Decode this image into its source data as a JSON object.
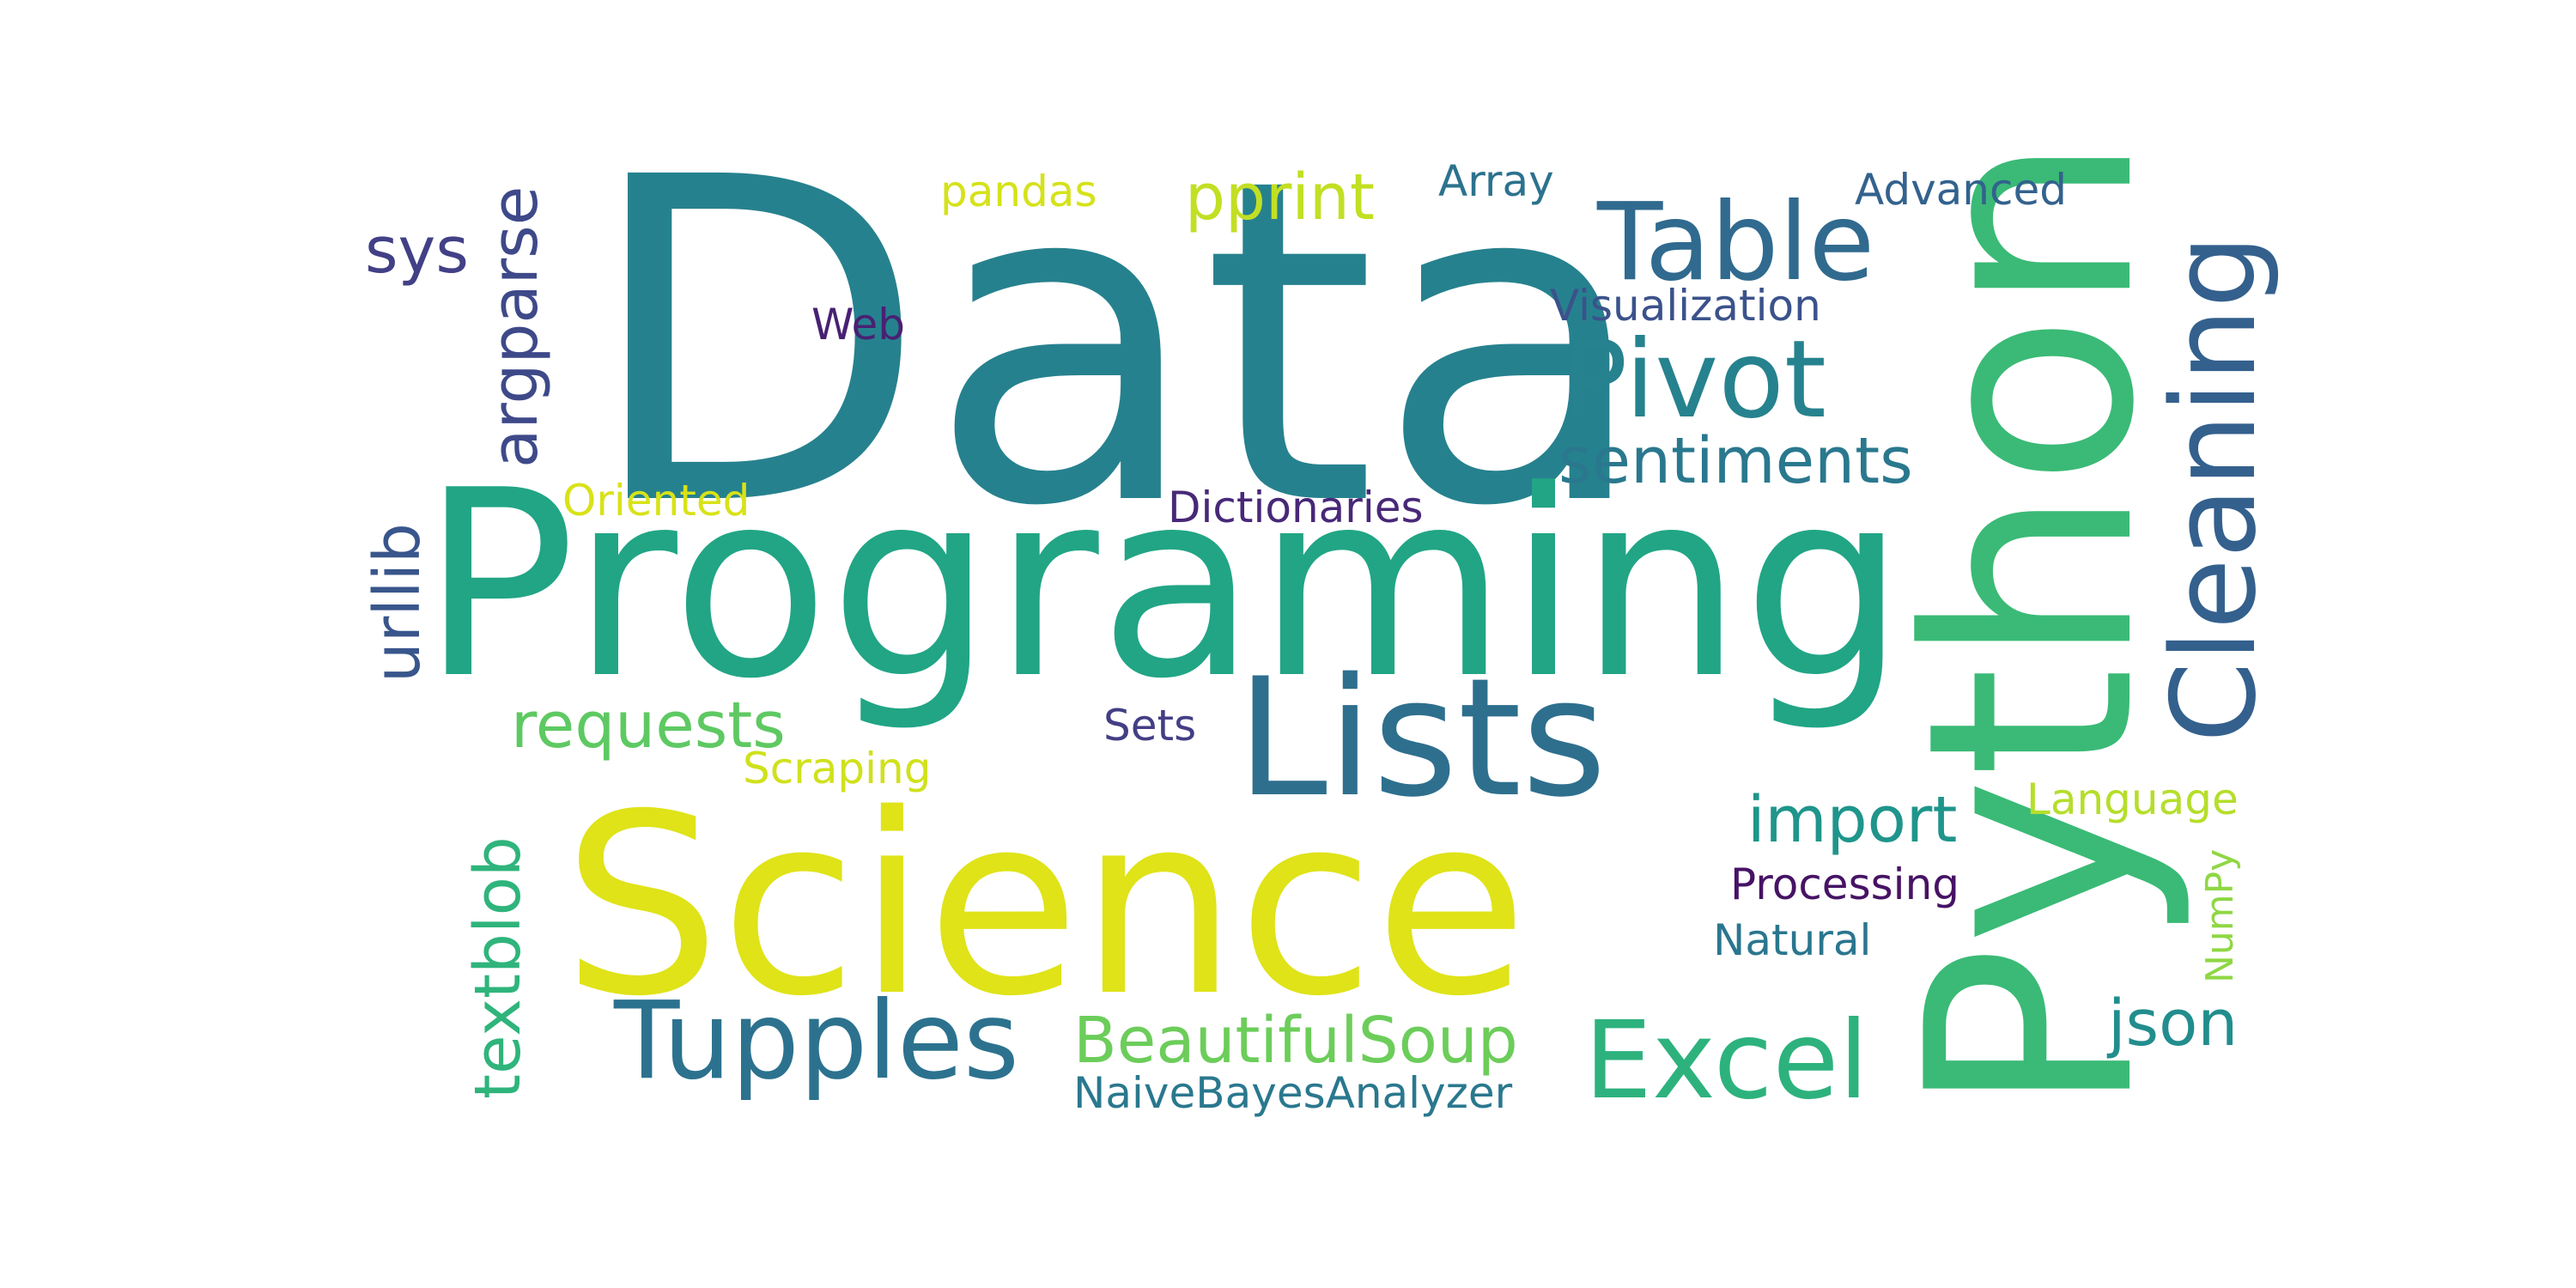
{
  "words": [
    {
      "text": "Data",
      "color": "#26818e"
    },
    {
      "text": "Programing",
      "color": "#21a585"
    },
    {
      "text": "Python",
      "color": "#3aba76"
    },
    {
      "text": "Science",
      "color": "#dfe318"
    },
    {
      "text": "Lists",
      "color": "#2e6f8e"
    },
    {
      "text": "Cleaning",
      "color": "#34608d"
    },
    {
      "text": "Tupples",
      "color": "#2c728e"
    },
    {
      "text": "Excel",
      "color": "#2db27d"
    },
    {
      "text": "Table",
      "color": "#306a8e"
    },
    {
      "text": "Pivot",
      "color": "#26828e"
    },
    {
      "text": "argparse",
      "color": "#3e4989"
    },
    {
      "text": "sentiments",
      "color": "#2a788e"
    },
    {
      "text": "textblob",
      "color": "#2fb47c"
    },
    {
      "text": "BeautifulSoup",
      "color": "#6ccd5a"
    },
    {
      "text": "import",
      "color": "#1f958b"
    },
    {
      "text": "requests",
      "color": "#5ec962"
    },
    {
      "text": "pprint",
      "color": "#c2df23"
    },
    {
      "text": "urllib",
      "color": "#39568c"
    },
    {
      "text": "json",
      "color": "#228d8d"
    },
    {
      "text": "sys",
      "color": "#424086"
    },
    {
      "text": "NaiveBayesAnalyzer",
      "color": "#2a788e"
    },
    {
      "text": "Dictionaries",
      "color": "#482878"
    },
    {
      "text": "Processing",
      "color": "#471365"
    },
    {
      "text": "Visualization",
      "color": "#3b528b"
    },
    {
      "text": "Advanced",
      "color": "#33628d"
    },
    {
      "text": "Oriented",
      "color": "#d8e219"
    },
    {
      "text": "Scraping",
      "color": "#d0e11c"
    },
    {
      "text": "Language",
      "color": "#b5de2b"
    },
    {
      "text": "Natural",
      "color": "#2a768e"
    },
    {
      "text": "Array",
      "color": "#2c728e"
    },
    {
      "text": "pandas",
      "color": "#d5e21a"
    },
    {
      "text": "Sets",
      "color": "#433e85"
    },
    {
      "text": "Web",
      "color": "#482173"
    },
    {
      "text": "NumPy",
      "color": "#8fd744"
    }
  ]
}
